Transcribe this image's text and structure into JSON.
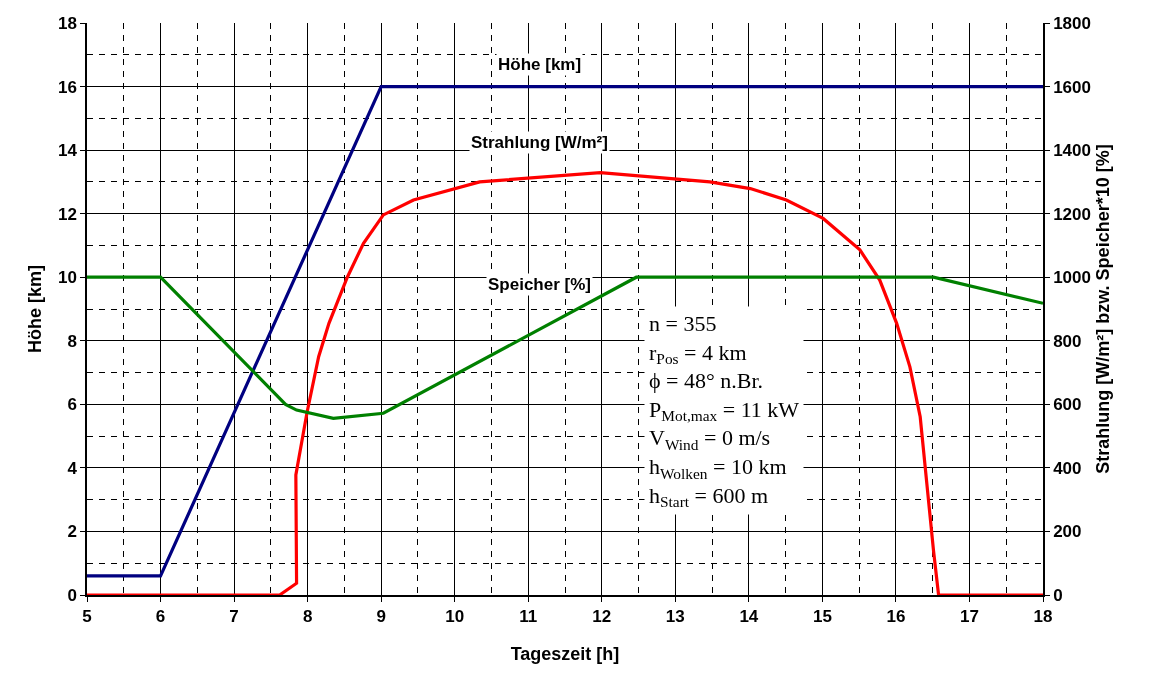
{
  "chart_data": {
    "type": "line",
    "xlabel": "Tageszeit [h]",
    "ylabel": "Höhe [km]",
    "y2label": "Strahlung [W/m²] bzw. Speicher*10 [%]",
    "xlim": [
      5,
      18
    ],
    "xticks": [
      5,
      6,
      7,
      8,
      9,
      10,
      11,
      12,
      13,
      14,
      15,
      16,
      17,
      18
    ],
    "ylim": [
      0,
      18
    ],
    "yticks": [
      0,
      2,
      4,
      6,
      8,
      10,
      12,
      14,
      16,
      18
    ],
    "y2lim": [
      0,
      1800
    ],
    "y2ticks": [
      0,
      200,
      400,
      600,
      800,
      1000,
      1200,
      1400,
      1600,
      1800
    ],
    "grid": true,
    "legend": false,
    "marker": "none",
    "line_style": "solid",
    "series": [
      {
        "name": "Höhe [km]",
        "color": "#000080",
        "x": [
          5,
          6,
          9,
          18
        ],
        "values": [
          0.6,
          0.6,
          16,
          16
        ]
      },
      {
        "name": "Strahlung [W/m²]",
        "color": "#ff0000",
        "axis": "y2",
        "x": [
          5,
          7.62,
          7.85,
          7.84,
          7.99,
          8.15,
          8.29,
          8.54,
          8.76,
          9.03,
          9.44,
          10.34,
          11.98,
          13.47,
          14.02,
          14.51,
          15.01,
          15.51,
          15.78,
          16.01,
          16.19,
          16.33,
          16.42,
          16.51,
          16.58,
          18
        ],
        "values": [
          0,
          0,
          37,
          378,
          572,
          750,
          855,
          1000,
          1107,
          1196,
          1243,
          1300,
          1329,
          1300,
          1279,
          1243,
          1185,
          1086,
          991,
          855,
          718,
          561,
          351,
          142,
          0,
          0
        ]
      },
      {
        "name": "Speicher [%]",
        "color": "#008000",
        "axis": "y2",
        "x": [
          5,
          6,
          7.7,
          7.85,
          8.35,
          9.03,
          12.47,
          16.51,
          18
        ],
        "values": [
          1000,
          1000,
          600,
          582,
          556,
          572,
          1000,
          1000,
          918
        ]
      }
    ],
    "annotations": [
      "n = 355",
      "r$_{Pos}$ = 4 km",
      "ϕ = 48° n.Br.",
      "P$_{Mot,max}$ = 11 kW",
      "V$_{Wind}$ = 0 m/s",
      "h$_{Wolken}$ = 10 km",
      "h$_{Start}$ = 600 m"
    ]
  }
}
